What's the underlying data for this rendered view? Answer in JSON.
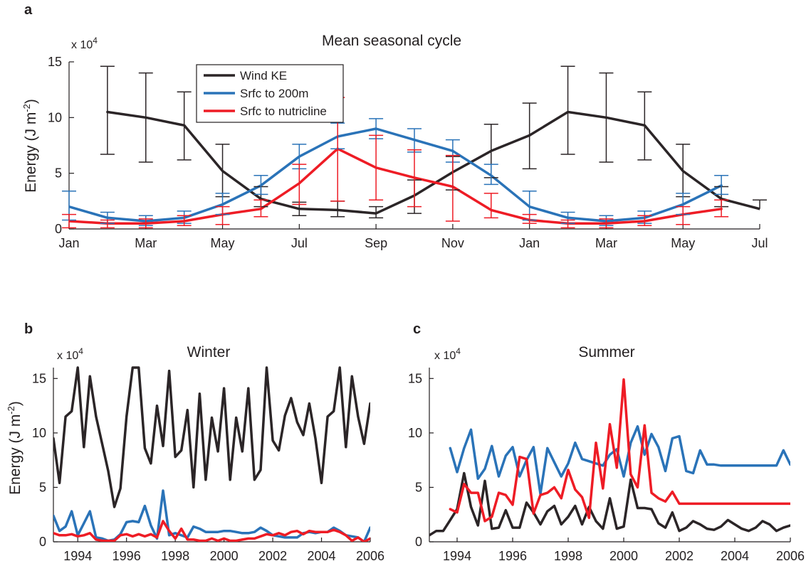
{
  "colors": {
    "wind": "#2b2527",
    "srfc200": "#2a73b8",
    "nutricline": "#ee1c25",
    "axis": "#231f20"
  },
  "chart_data": [
    {
      "panel": "a",
      "type": "line",
      "title": "Mean seasonal cycle",
      "ylabel": "Energy (J m",
      "ylabel_sup": "-2",
      "ylabel_close": ")",
      "multiplier_base": "x 10",
      "multiplier_exp": "4",
      "xlim": [
        0,
        18
      ],
      "ylim": [
        0,
        15
      ],
      "xticks": [
        0,
        2,
        4,
        6,
        8,
        10,
        12,
        14,
        16,
        18
      ],
      "xtick_labels": [
        "Jan",
        "Mar",
        "May",
        "Jul",
        "Sep",
        "Nov",
        "Jan",
        "Mar",
        "May",
        "Jul"
      ],
      "yticks": [
        0,
        5,
        10,
        15
      ],
      "ytick_labels": [
        "0",
        "5",
        "10",
        "15"
      ],
      "legend_position": "top-left",
      "series": [
        {
          "name": "Wind KE",
          "color_key": "wind",
          "x": [
            1,
            2,
            3,
            4,
            5,
            6,
            7,
            8,
            9,
            10,
            11,
            12,
            13,
            14,
            15,
            16,
            17,
            18
          ],
          "y": [
            10.5,
            10.0,
            9.3,
            5.2,
            2.7,
            1.8,
            1.7,
            1.4,
            3.0,
            5.1,
            7.0,
            8.4,
            10.5,
            10.0,
            9.3,
            5.2,
            2.7,
            1.8
          ],
          "err_low": [
            6.7,
            6.0,
            6.2,
            2.9,
            2.0,
            1.2,
            1.1,
            1.0,
            1.4,
            3.5,
            4.6,
            5.4,
            6.7,
            6.0,
            6.2,
            2.9,
            2.0,
            null
          ],
          "err_high": [
            14.6,
            14.0,
            12.3,
            7.6,
            3.8,
            2.4,
            2.5,
            2.0,
            4.4,
            6.5,
            9.4,
            11.3,
            14.6,
            14.0,
            12.3,
            7.6,
            3.8,
            2.6
          ]
        },
        {
          "name": "Srfc to 200m",
          "color_key": "srfc200",
          "x": [
            0,
            1,
            2,
            3,
            4,
            5,
            6,
            7,
            8,
            9,
            10,
            11,
            12,
            13,
            14,
            15,
            16,
            17
          ],
          "y": [
            2.0,
            1.0,
            0.7,
            1.0,
            2.2,
            3.9,
            6.5,
            8.3,
            9.0,
            8.0,
            7.0,
            4.8,
            2.0,
            1.0,
            0.7,
            1.0,
            2.2,
            3.9
          ],
          "err_low": [
            0.8,
            0.5,
            0.3,
            0.5,
            1.3,
            3.1,
            5.4,
            7.2,
            8.1,
            6.9,
            6.0,
            4.0,
            0.8,
            0.5,
            0.3,
            0.5,
            1.3,
            3.1
          ],
          "err_high": [
            3.4,
            1.5,
            1.2,
            1.6,
            3.2,
            4.8,
            7.6,
            9.5,
            9.9,
            9.0,
            8.0,
            5.8,
            3.4,
            1.5,
            1.2,
            1.6,
            3.2,
            4.8
          ]
        },
        {
          "name": "Srfc to nutricline",
          "color_key": "nutricline",
          "x": [
            0,
            1,
            2,
            3,
            4,
            5,
            6,
            7,
            8,
            9,
            10,
            11,
            12,
            13,
            14,
            15,
            16,
            17
          ],
          "y": [
            0.7,
            0.5,
            0.5,
            0.7,
            1.3,
            1.8,
            4.1,
            7.2,
            5.5,
            4.6,
            3.8,
            1.7,
            0.8,
            0.5,
            0.5,
            0.7,
            1.3,
            1.8
          ],
          "err_low": [
            0.1,
            0.1,
            0.1,
            0.3,
            0.4,
            1.1,
            2.2,
            2.5,
            2.6,
            2.0,
            0.7,
            1.0,
            0.5,
            0.1,
            0.1,
            0.3,
            0.4,
            1.1
          ],
          "err_high": [
            1.3,
            0.8,
            0.9,
            1.2,
            2.0,
            2.6,
            5.8,
            11.8,
            8.4,
            7.1,
            6.6,
            3.2,
            1.3,
            0.8,
            0.9,
            1.2,
            2.0,
            2.6
          ]
        }
      ],
      "legend": [
        "Wind KE",
        "Srfc to 200m",
        "Srfc to nutricline"
      ]
    },
    {
      "panel": "b",
      "type": "line",
      "title": "Winter",
      "ylabel": "Energy (J m",
      "ylabel_sup": "-2",
      "ylabel_close": ")",
      "multiplier_base": "x 10",
      "multiplier_exp": "4",
      "xlim": [
        1993,
        2006
      ],
      "ylim": [
        0,
        16
      ],
      "xticks": [
        1994,
        1996,
        1998,
        2000,
        2002,
        2004,
        2006
      ],
      "xtick_labels": [
        "1994",
        "1996",
        "1998",
        "2000",
        "2002",
        "2004",
        "2006"
      ],
      "yticks": [
        0,
        5,
        10,
        15
      ],
      "ytick_labels": [
        "0",
        "5",
        "10",
        "15"
      ],
      "series": [
        {
          "name": "Wind KE",
          "color_key": "wind",
          "x": [
            1993.0,
            1993.25,
            1993.5,
            1993.75,
            1994.0,
            1994.25,
            1994.5,
            1994.75,
            1995.0,
            1995.25,
            1995.5,
            1995.75,
            1996.0,
            1996.25,
            1996.5,
            1996.75,
            1997.0,
            1997.25,
            1997.5,
            1997.75,
            1998.0,
            1998.25,
            1998.5,
            1998.75,
            1999.0,
            1999.25,
            1999.5,
            1999.75,
            2000.0,
            2000.25,
            2000.5,
            2000.75,
            2001.0,
            2001.25,
            2001.5,
            2001.75,
            2002.0,
            2002.25,
            2002.5,
            2002.75,
            2003.0,
            2003.25,
            2003.5,
            2003.75,
            2004.0,
            2004.25,
            2004.5,
            2004.75,
            2005.0,
            2005.25,
            2005.5,
            2005.75,
            2006.0
          ],
          "y": [
            9.5,
            5.4,
            11.5,
            12.0,
            16.0,
            8.7,
            15.2,
            11.5,
            9.0,
            6.5,
            3.2,
            4.9,
            11.5,
            16.0,
            16.0,
            8.6,
            7.2,
            12.5,
            8.8,
            15.7,
            7.8,
            8.4,
            12.1,
            5.0,
            13.6,
            5.7,
            11.4,
            8.3,
            14.1,
            5.7,
            11.4,
            8.3,
            14.1,
            5.7,
            6.6,
            16.0,
            9.3,
            8.4,
            11.6,
            13.2,
            11.0,
            9.8,
            12.7,
            9.5,
            5.4,
            11.5,
            12.0,
            16.0,
            8.7,
            15.2,
            11.5,
            9.0,
            12.7
          ]
        },
        {
          "name": "Srfc to 200m",
          "color_key": "srfc200",
          "x": [
            1993.0,
            1993.25,
            1993.5,
            1993.75,
            1994.0,
            1994.25,
            1994.5,
            1994.75,
            1995.0,
            1995.25,
            1995.5,
            1995.75,
            1996.0,
            1996.25,
            1996.5,
            1996.75,
            1997.0,
            1997.25,
            1997.5,
            1997.75,
            1998.0,
            1998.25,
            1998.5,
            1998.75,
            1999.0,
            1999.25,
            1999.5,
            1999.75,
            2000.0,
            2000.25,
            2000.5,
            2000.75,
            2001.0,
            2001.25,
            2001.5,
            2001.75,
            2002.0,
            2002.25,
            2002.5,
            2002.75,
            2003.0,
            2003.25,
            2003.5,
            2003.75,
            2004.0,
            2004.25,
            2004.5,
            2004.75,
            2005.0,
            2005.25,
            2005.5,
            2005.75,
            2006.0
          ],
          "y": [
            2.4,
            1.0,
            1.4,
            2.8,
            0.6,
            1.7,
            2.8,
            0.4,
            0.3,
            0.1,
            0.2,
            0.7,
            1.8,
            1.9,
            1.8,
            3.3,
            1.5,
            0.3,
            4.7,
            0.6,
            0.8,
            0.6,
            0.4,
            1.4,
            1.2,
            0.9,
            0.9,
            0.9,
            1.0,
            1.0,
            0.9,
            0.8,
            0.8,
            0.9,
            1.3,
            1.0,
            0.6,
            0.5,
            0.4,
            0.4,
            0.4,
            0.8,
            0.9,
            0.8,
            0.9,
            0.9,
            1.3,
            1.0,
            0.6,
            0.5,
            0.4,
            0.0,
            1.3
          ]
        },
        {
          "name": "Srfc to nutricline",
          "color_key": "nutricline",
          "x": [
            1993.0,
            1993.25,
            1993.5,
            1993.75,
            1994.0,
            1994.25,
            1994.5,
            1994.75,
            1995.0,
            1995.25,
            1995.5,
            1995.75,
            1996.0,
            1996.25,
            1996.5,
            1996.75,
            1997.0,
            1997.25,
            1997.5,
            1997.75,
            1998.0,
            1998.25,
            1998.5,
            1998.75,
            1999.0,
            1999.25,
            1999.5,
            1999.75,
            2000.0,
            2000.25,
            2000.5,
            2000.75,
            2001.0,
            2001.25,
            2001.5,
            2001.75,
            2002.0,
            2002.25,
            2002.5,
            2002.75,
            2003.0,
            2003.25,
            2003.5,
            2003.75,
            2004.0,
            2004.25,
            2004.5,
            2004.75,
            2005.0,
            2005.25,
            2005.5,
            2005.75,
            2006.0
          ],
          "y": [
            0.8,
            0.6,
            0.6,
            0.7,
            0.5,
            0.6,
            0.8,
            0.2,
            0.1,
            0.1,
            0.1,
            0.6,
            0.7,
            0.5,
            0.7,
            0.5,
            0.7,
            0.4,
            1.9,
            1.0,
            0.3,
            1.2,
            0.2,
            0.2,
            0.1,
            0.1,
            0.3,
            0.1,
            0.3,
            0.1,
            0.1,
            0.2,
            0.3,
            0.3,
            0.5,
            0.7,
            0.6,
            0.8,
            0.6,
            0.9,
            1.0,
            0.7,
            1.0,
            0.9,
            0.9,
            0.9,
            1.1,
            0.9,
            0.6,
            0.1,
            0.4,
            0.0,
            0.3
          ]
        }
      ]
    },
    {
      "panel": "c",
      "type": "line",
      "title": "Summer",
      "multiplier_base": "x 10",
      "multiplier_exp": "4",
      "xlim": [
        1993,
        2006
      ],
      "ylim": [
        0,
        16
      ],
      "xticks": [
        1994,
        1996,
        1998,
        2000,
        2002,
        2004,
        2006
      ],
      "xtick_labels": [
        "1994",
        "1996",
        "1998",
        "2000",
        "2002",
        "2004",
        "2006"
      ],
      "yticks": [
        0,
        5,
        10,
        15
      ],
      "ytick_labels": [
        "0",
        "5",
        "10",
        "15"
      ],
      "series": [
        {
          "name": "Wind KE",
          "color_key": "wind",
          "x": [
            1993.0,
            1993.25,
            1993.5,
            1993.75,
            1994.0,
            1994.25,
            1994.5,
            1994.75,
            1995.0,
            1995.25,
            1995.5,
            1995.75,
            1996.0,
            1996.25,
            1996.5,
            1996.75,
            1997.0,
            1997.25,
            1997.5,
            1997.75,
            1998.0,
            1998.25,
            1998.5,
            1998.75,
            1999.0,
            1999.25,
            1999.5,
            1999.75,
            2000.0,
            2000.25,
            2000.5,
            2000.75,
            2001.0,
            2001.25,
            2001.5,
            2001.75,
            2002.0,
            2002.25,
            2002.5,
            2002.75,
            2003.0,
            2003.25,
            2003.5,
            2003.75,
            2004.0,
            2004.25,
            2004.5,
            2004.75,
            2005.0,
            2005.25,
            2005.5,
            2005.75,
            2006.0
          ],
          "y": [
            0.6,
            1.0,
            1.0,
            2.0,
            3.0,
            6.3,
            3.2,
            1.5,
            5.6,
            1.2,
            1.3,
            2.9,
            1.3,
            1.3,
            3.6,
            2.7,
            1.6,
            2.8,
            3.3,
            1.6,
            2.3,
            3.3,
            1.6,
            3.2,
            1.9,
            1.2,
            4.0,
            1.2,
            1.4,
            5.7,
            3.1,
            3.1,
            3.0,
            1.7,
            1.3,
            2.7,
            1.0,
            1.3,
            1.9,
            1.6,
            1.2,
            1.1,
            1.4,
            2.0,
            1.6,
            1.2,
            1.0,
            1.3,
            1.9,
            1.6,
            1.0,
            1.3,
            1.5
          ]
        },
        {
          "name": "Srfc to 200m",
          "color_key": "srfc200",
          "x": [
            1993.75,
            1994.0,
            1994.25,
            1994.5,
            1994.75,
            1995.0,
            1995.25,
            1995.5,
            1995.75,
            1996.0,
            1996.25,
            1996.5,
            1996.75,
            1997.0,
            1997.25,
            1997.5,
            1997.75,
            1998.0,
            1998.25,
            1998.5,
            1998.75,
            1999.0,
            1999.25,
            1999.5,
            1999.75,
            2000.0,
            2000.25,
            2000.5,
            2000.75,
            2001.0,
            2001.25,
            2001.5,
            2001.75,
            2002.0,
            2002.25,
            2002.5,
            2002.75,
            2003.0,
            2003.25,
            2003.5,
            2003.75,
            2004.0,
            2004.25,
            2004.5,
            2004.75,
            2005.0,
            2005.25,
            2005.5,
            2005.75,
            2006.0
          ],
          "y": [
            8.6,
            6.4,
            8.6,
            10.3,
            5.8,
            6.7,
            8.8,
            6.0,
            7.9,
            8.7,
            6.0,
            7.5,
            8.7,
            4.4,
            8.6,
            7.3,
            6.0,
            7.2,
            9.1,
            7.6,
            7.4,
            7.2,
            7.0,
            8.0,
            8.5,
            6.0,
            9.1,
            10.6,
            8.0,
            9.9,
            8.7,
            6.5,
            9.5,
            9.7,
            6.5,
            6.3,
            8.4,
            7.1,
            7.1,
            7.0,
            7.0,
            7.0,
            7.0,
            7.0,
            7.0,
            7.0,
            7.0,
            7.0,
            8.4,
            7.1
          ]
        },
        {
          "name": "Srfc to nutricline",
          "color_key": "nutricline",
          "x": [
            1993.75,
            1994.0,
            1994.25,
            1994.5,
            1994.75,
            1995.0,
            1995.25,
            1995.5,
            1995.75,
            1996.0,
            1996.25,
            1996.5,
            1996.75,
            1997.0,
            1997.25,
            1997.5,
            1997.75,
            1998.0,
            1998.25,
            1998.5,
            1998.75,
            1999.0,
            1999.25,
            1999.5,
            1999.75,
            2000.0,
            2000.25,
            2000.5,
            2000.75,
            2001.0,
            2001.25,
            2001.5,
            2001.75,
            2002.0,
            2002.25,
            2002.5,
            2002.75,
            2003.0,
            2003.25,
            2003.5,
            2003.75,
            2004.0,
            2004.25,
            2004.5,
            2004.75,
            2005.0,
            2005.25,
            2005.5,
            2005.75,
            2006.0
          ],
          "y": [
            3.0,
            2.7,
            5.3,
            4.5,
            4.5,
            1.9,
            2.3,
            4.5,
            4.3,
            3.4,
            7.8,
            7.6,
            2.6,
            4.3,
            4.5,
            5.0,
            4.0,
            6.6,
            4.8,
            4.1,
            2.2,
            9.1,
            4.9,
            10.8,
            6.8,
            14.9,
            6.2,
            5.0,
            10.7,
            4.5,
            4.0,
            3.7,
            4.6,
            3.5,
            3.5,
            3.5,
            3.5,
            3.5,
            3.5,
            3.5,
            3.5,
            3.5,
            3.5,
            3.5,
            3.5,
            3.5,
            3.5,
            3.5,
            3.5,
            3.5
          ]
        }
      ]
    }
  ]
}
